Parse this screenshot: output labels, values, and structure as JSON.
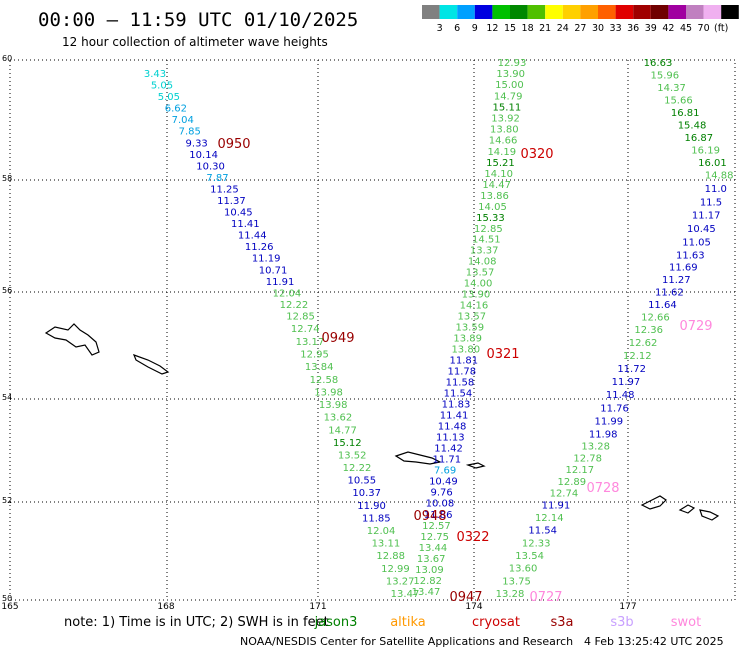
{
  "header": {
    "title": "00:00 – 11:59 UTC 01/10/2025",
    "subtitle": "12 hour collection of altimeter wave heights"
  },
  "legend": {
    "labels": [
      "3",
      "6",
      "9",
      "12",
      "15",
      "18",
      "21",
      "24",
      "27",
      "30",
      "33",
      "36",
      "39",
      "42",
      "45",
      "70",
      "(ft)"
    ],
    "colors": [
      "#808080",
      "#00e5e5",
      "#00a0ff",
      "#0000e0",
      "#00c000",
      "#008800",
      "#50c000",
      "#ffff00",
      "#ffd000",
      "#ffa000",
      "#ff6000",
      "#e00000",
      "#a00000",
      "#700000",
      "#a000a0",
      "#c080c0",
      "#f0b0f0",
      "#000000"
    ]
  },
  "axes": {
    "lat_labels": [
      "60",
      "58",
      "56",
      "54",
      "52",
      "50"
    ],
    "lon_labels": [
      "165",
      "168",
      "171",
      "174",
      "177"
    ]
  },
  "tracks": [
    {
      "id": "track-0950",
      "time_label": "0950",
      "label_color": "#990000",
      "values": [
        "3.43",
        "5.05",
        "5.05",
        "6.62",
        "7.04",
        "7.85",
        "9.33",
        "10.14",
        "10.30",
        "7.87",
        "11.25",
        "11.37",
        "10.45",
        "11.41",
        "11.44",
        "11.26",
        "11.19",
        "10.71",
        "11.91",
        "12.04",
        "12.22",
        "12.85",
        "12.74",
        "13.17",
        "12.95",
        "13.84",
        "12.58",
        "13.98",
        "13.98",
        "13.62",
        "14.77",
        "15.12",
        "13.52",
        "12.22",
        "10.55",
        "10.37",
        "11.90",
        "11.85",
        "12.04",
        "13.11",
        "12.88",
        "12.99",
        "13.27",
        "13.47"
      ],
      "colors": [
        "#00d0d0",
        "#00d0d0",
        "#00d0d0",
        "#00a0e0",
        "#00a0e0",
        "#00a0e0",
        "#0000c0",
        "#0000c0",
        "#0000c0",
        "#00a0e0",
        "#0000c0",
        "#0000c0",
        "#0000c0",
        "#0000c0",
        "#0000c0",
        "#0000c0",
        "#0000c0",
        "#0000c0",
        "#0000c0",
        "#50c050",
        "#50c050",
        "#50c050",
        "#50c050",
        "#50c050",
        "#50c050",
        "#50c050",
        "#50c050",
        "#50c050",
        "#50c050",
        "#50c050",
        "#50c050",
        "#008000",
        "#50c050",
        "#50c050",
        "#0000c0",
        "#0000c0",
        "#0000c0",
        "#0000c0",
        "#50c050",
        "#50c050",
        "#50c050",
        "#50c050",
        "#50c050",
        "#50c050"
      ]
    },
    {
      "id": "track-0320",
      "time_label": "0320",
      "label_color": "#cc0000",
      "values": [
        "12.93",
        "13.90",
        "15.00",
        "14.79",
        "15.11",
        "13.92",
        "13.80",
        "14.66",
        "14.19",
        "15.21",
        "14.10",
        "14.47",
        "13.86",
        "14.05",
        "15.33",
        "12.85",
        "14.51",
        "13.37",
        "14.08",
        "13.57",
        "14.00",
        "13.90",
        "14.16",
        "13.57",
        "13.59",
        "13.89",
        "13.80",
        "11.81",
        "11.78",
        "11.58",
        "11.54",
        "11.83",
        "11.41",
        "11.48",
        "11.13",
        "11.42",
        "11.71",
        "7.69",
        "10.49",
        "9.76",
        "10.08",
        "11.86",
        "12.57",
        "12.75",
        "13.44",
        "13.67",
        "13.09",
        "12.82",
        "13.47"
      ],
      "colors": [
        "#50c050",
        "#50c050",
        "#50c050",
        "#50c050",
        "#008000",
        "#50c050",
        "#50c050",
        "#50c050",
        "#50c050",
        "#008000",
        "#50c050",
        "#50c050",
        "#50c050",
        "#50c050",
        "#008000",
        "#50c050",
        "#50c050",
        "#50c050",
        "#50c050",
        "#50c050",
        "#50c050",
        "#50c050",
        "#50c050",
        "#50c050",
        "#50c050",
        "#50c050",
        "#50c050",
        "#0000c0",
        "#0000c0",
        "#0000c0",
        "#0000c0",
        "#0000c0",
        "#0000c0",
        "#0000c0",
        "#0000c0",
        "#0000c0",
        "#0000c0",
        "#00a0e0",
        "#0000c0",
        "#0000c0",
        "#0000c0",
        "#0000c0",
        "#50c050",
        "#50c050",
        "#50c050",
        "#50c050",
        "#50c050",
        "#50c050",
        "#50c050"
      ]
    },
    {
      "id": "track-0729",
      "time_label": "0729",
      "label_color": "#ff88dd",
      "values": [
        "16.63",
        "15.96",
        "14.37",
        "15.66",
        "16.81",
        "15.48",
        "16.87",
        "16.19",
        "16.01",
        "14.88",
        "11.0",
        "11.5",
        "11.17",
        "10.45",
        "11.05",
        "11.63",
        "11.69",
        "11.27",
        "11.62",
        "11.64",
        "12.66",
        "12.36",
        "12.62",
        "12.12",
        "11.72",
        "11.97",
        "11.48",
        "11.76",
        "11.99",
        "11.98",
        "13.28",
        "12.78",
        "12.17",
        "12.89",
        "12.74",
        "11.91",
        "12.14",
        "11.54",
        "12.33",
        "13.54",
        "13.60",
        "13.75",
        "13.28"
      ],
      "colors": [
        "#008000",
        "#50c050",
        "#50c050",
        "#50c050",
        "#008000",
        "#008000",
        "#008000",
        "#50c050",
        "#008000",
        "#50c050",
        "#0000c0",
        "#0000c0",
        "#0000c0",
        "#0000c0",
        "#0000c0",
        "#0000c0",
        "#0000c0",
        "#0000c0",
        "#0000c0",
        "#0000c0",
        "#50c050",
        "#50c050",
        "#50c050",
        "#50c050",
        "#0000c0",
        "#0000c0",
        "#0000c0",
        "#0000c0",
        "#0000c0",
        "#0000c0",
        "#50c050",
        "#50c050",
        "#50c050",
        "#50c050",
        "#50c050",
        "#0000c0",
        "#50c050",
        "#0000c0",
        "#50c050",
        "#50c050",
        "#50c050",
        "#50c050",
        "#50c050"
      ]
    }
  ],
  "pass_labels": [
    {
      "text": "0949",
      "color": "#990000"
    },
    {
      "text": "0321",
      "color": "#cc0000"
    },
    {
      "text": "0728",
      "color": "#ff88dd"
    },
    {
      "text": "0948",
      "color": "#990000"
    },
    {
      "text": "0322",
      "color": "#cc0000"
    },
    {
      "text": "0947",
      "color": "#990000"
    },
    {
      "text": "0727",
      "color": "#ff88dd"
    }
  ],
  "footer": {
    "note": "note: 1) Time is in UTC; 2) SWH is in feet",
    "satellites": [
      {
        "name": "jason3",
        "color": "#008000"
      },
      {
        "name": "altika",
        "color": "#ff9900"
      },
      {
        "name": "cryosat",
        "color": "#cc0000"
      },
      {
        "name": "s3a",
        "color": "#990000"
      },
      {
        "name": "s3b",
        "color": "#c8a0ff"
      },
      {
        "name": "swot",
        "color": "#ff88dd"
      }
    ],
    "credit": "NOAA/NESDIS Center for Satellite Applications and Research",
    "timestamp": "4 Feb 13:25:42 UTC 2025"
  }
}
